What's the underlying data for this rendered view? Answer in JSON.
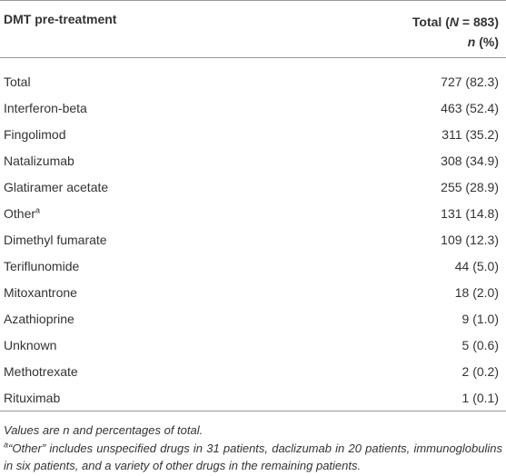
{
  "table": {
    "header": {
      "col1": "DMT pre-treatment",
      "col2_line1": [
        "Total (",
        "N",
        " = 883)"
      ],
      "col2_line2": [
        "n",
        " (%)"
      ]
    },
    "rows": [
      [
        "Total",
        "727 (82.3)"
      ],
      [
        "Interferon-beta",
        "463 (52.4)"
      ],
      [
        "Fingolimod",
        "311 (35.2)"
      ],
      [
        "Natalizumab",
        "308 (34.9)"
      ],
      [
        "Glatiramer acetate",
        "255 (28.9)"
      ],
      [
        "Other",
        "131 (14.8)",
        "a"
      ],
      [
        "Dimethyl fumarate",
        "109 (12.3)"
      ],
      [
        "Teriflunomide",
        "44 (5.0)"
      ],
      [
        "Mitoxantrone",
        "18 (2.0)"
      ],
      [
        "Azathioprine",
        "9 (1.0)"
      ],
      [
        "Unknown",
        "5 (0.6)"
      ],
      [
        "Methotrexate",
        "2 (0.2)"
      ],
      [
        "Rituximab",
        "1 (0.1)"
      ]
    ],
    "footnotes": {
      "note": "Values are n and percentages of total.",
      "mark": "a",
      "text": "“Other” includes unspecified drugs in 31 patients, daclizumab in 20 patients, immunoglobulins in six patients, and a variety of other drugs in the remaining patients."
    }
  }
}
